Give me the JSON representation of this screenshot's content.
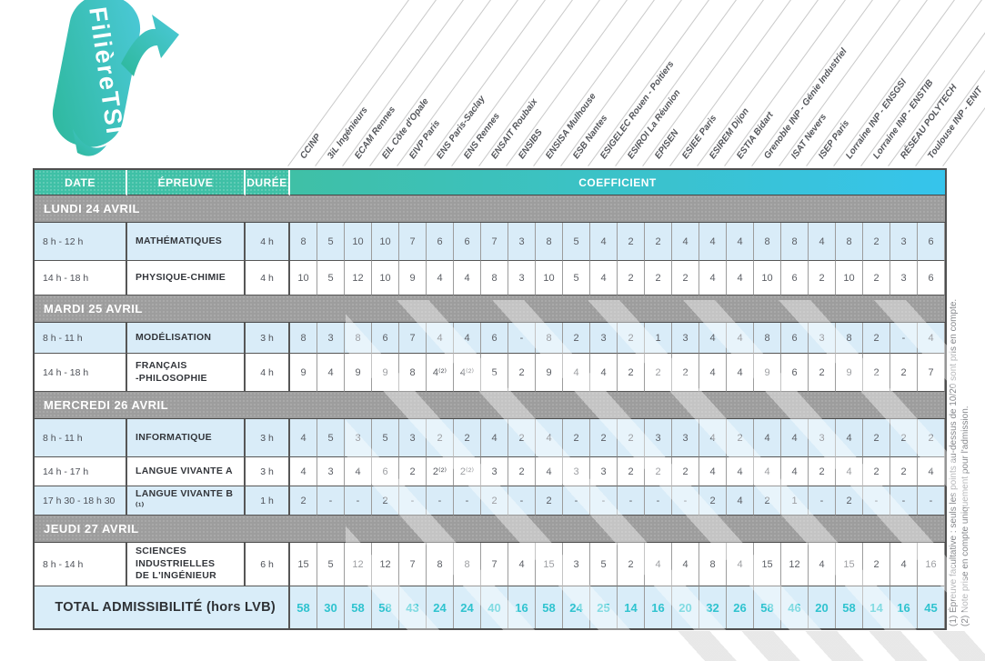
{
  "logo": {
    "line1": "Filière",
    "line2": "TSI"
  },
  "header": {
    "date": "DATE",
    "epreuve": "ÉPREUVE",
    "duree": "DURÉE",
    "coefficient": "COEFFICIENT"
  },
  "schools": [
    "CCINP",
    "3iL Ingénieurs",
    "ECAM Rennes",
    "EIL Côte d'Opale",
    "EIVP Paris",
    "ENS Paris-Saclay",
    "ENS Rennes",
    "ENSAIT Roubaix",
    "ENSIBS",
    "ENSISA Mulhouse",
    "ESB Nantes",
    "ESIGELEC Rouen - Poitiers",
    "ESIROI La Réunion",
    "EPISEN",
    "ESIEE Paris",
    "ESIREM Dijon",
    "ESTIA Bidart",
    "Grenoble INP - Génie Industriel",
    "ISAT Nevers",
    "ISEP Paris",
    "Lorraine INP - ENSGSI",
    "Lorraine INP - ENSTIB",
    "RÉSEAU POLYTECH",
    "Toulouse INP - ENIT"
  ],
  "sections": [
    {
      "title": "LUNDI 24 AVRIL",
      "rows": [
        {
          "time": "8 h - 12 h",
          "name": "MATHÉMATIQUES",
          "duration": "4 h",
          "shade": "blue",
          "coeffs": [
            "8",
            "5",
            "10",
            "10",
            "7",
            "6",
            "6",
            "7",
            "3",
            "8",
            "5",
            "4",
            "2",
            "2",
            "4",
            "4",
            "4",
            "8",
            "8",
            "4",
            "8",
            "2",
            "3",
            "6"
          ]
        },
        {
          "time": "14 h - 18 h",
          "name": "PHYSIQUE-CHIMIE",
          "duration": "4 h",
          "shade": "white",
          "coeffs": [
            "10",
            "5",
            "12",
            "10",
            "9",
            "4",
            "4",
            "8",
            "3",
            "10",
            "5",
            "4",
            "2",
            "2",
            "2",
            "4",
            "4",
            "10",
            "6",
            "2",
            "10",
            "2",
            "3",
            "6"
          ]
        }
      ]
    },
    {
      "title": "MARDI 25 AVRIL",
      "rows": [
        {
          "time": "8 h - 11 h",
          "name": "MODÉLISATION",
          "duration": "3 h",
          "shade": "blue",
          "coeffs": [
            "8",
            "3",
            "8",
            "6",
            "7",
            "4",
            "4",
            "6",
            "-",
            "8",
            "2",
            "3",
            "2",
            "1",
            "3",
            "4",
            "4",
            "8",
            "6",
            "3",
            "8",
            "2",
            "-",
            "4"
          ]
        },
        {
          "time": "14 h - 18 h",
          "name": "FRANÇAIS\n-PHILOSOPHIE",
          "duration": "4 h",
          "shade": "white",
          "coeffs": [
            "9",
            "4",
            "9",
            "9",
            "8",
            "4⁽²⁾",
            "4⁽²⁾",
            "5",
            "2",
            "9",
            "4",
            "4",
            "2",
            "2",
            "2",
            "4",
            "4",
            "9",
            "6",
            "2",
            "9",
            "2",
            "2",
            "7"
          ]
        }
      ]
    },
    {
      "title": "MERCREDI 26 AVRIL",
      "rows": [
        {
          "time": "8 h - 11 h",
          "name": "INFORMATIQUE",
          "duration": "3 h",
          "shade": "blue",
          "coeffs": [
            "4",
            "5",
            "3",
            "5",
            "3",
            "2",
            "2",
            "4",
            "2",
            "4",
            "2",
            "2",
            "2",
            "3",
            "3",
            "4",
            "2",
            "4",
            "4",
            "3",
            "4",
            "2",
            "2",
            "2"
          ]
        },
        {
          "time": "14 h - 17 h",
          "name": "LANGUE VIVANTE A",
          "duration": "3 h",
          "shade": "white",
          "coeffs": [
            "4",
            "3",
            "4",
            "6",
            "2",
            "2⁽²⁾",
            "2⁽²⁾",
            "3",
            "2",
            "4",
            "3",
            "3",
            "2",
            "2",
            "2",
            "4",
            "4",
            "4",
            "4",
            "2",
            "4",
            "2",
            "2",
            "4"
          ]
        },
        {
          "time": "17 h 30 - 18 h 30",
          "name": "LANGUE VIVANTE B ⁽¹⁾",
          "duration": "1 h",
          "shade": "blue",
          "coeffs": [
            "2",
            "-",
            "-",
            "2",
            "-",
            "-",
            "-",
            "2",
            "-",
            "2",
            "-",
            "-",
            "-",
            "-",
            "-",
            "2",
            "4",
            "2",
            "1",
            "-",
            "2",
            "-",
            "-",
            "-"
          ]
        }
      ]
    },
    {
      "title": "JEUDI 27 AVRIL",
      "rows": [
        {
          "time": "8 h - 14 h",
          "name": "SCIENCES\nINDUSTRIELLES\nDE L'INGÉNIEUR",
          "duration": "6 h",
          "shade": "white",
          "coeffs": [
            "15",
            "5",
            "12",
            "12",
            "7",
            "8",
            "8",
            "7",
            "4",
            "15",
            "3",
            "5",
            "2",
            "4",
            "4",
            "8",
            "4",
            "15",
            "12",
            "4",
            "15",
            "2",
            "4",
            "16"
          ]
        }
      ]
    }
  ],
  "total": {
    "label": "TOTAL ADMISSIBILITÉ (hors LVB)",
    "values": [
      "58",
      "30",
      "58",
      "58",
      "43",
      "24",
      "24",
      "40",
      "16",
      "58",
      "24",
      "25",
      "14",
      "16",
      "20",
      "32",
      "26",
      "58",
      "46",
      "20",
      "58",
      "14",
      "16",
      "45"
    ]
  },
  "footnotes": [
    "(1) Épreuve facultative : seuls les points au-dessus de 10/20 sont pris en compte.",
    "(2) Note prise en compte uniquement pour l'admission."
  ],
  "colors": {
    "teal": "#3FC0A6",
    "cyan": "#36C4EC",
    "band_gray": "#9D9D9D",
    "row_blue": "#D9ECF8",
    "total_value": "#2FC3CF"
  }
}
